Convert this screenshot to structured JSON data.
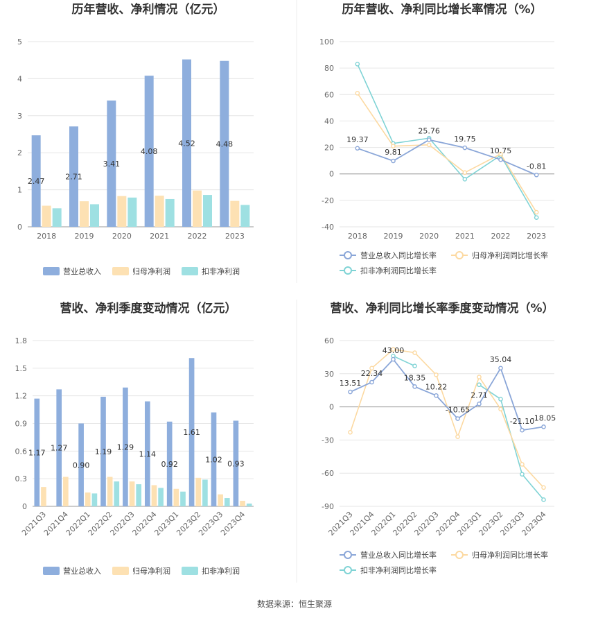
{
  "source_label": "数据来源：恒生聚源",
  "colors": {
    "revenue": "#8eaedd",
    "netprofit": "#fde1b3",
    "deducted": "#9ee0e2",
    "revenue_line": "#8aa6d8",
    "netprofit_line": "#fcd9a1",
    "deducted_line": "#7fd3d5"
  },
  "chart_data": [
    {
      "type": "bar",
      "title": "历年营收、净利情况（亿元）",
      "categories": [
        "2018",
        "2019",
        "2020",
        "2021",
        "2022",
        "2023"
      ],
      "ylim": [
        0,
        5
      ],
      "yticks": [
        0,
        1,
        2,
        3,
        4,
        5
      ],
      "series": [
        {
          "name": "营业总收入",
          "values": [
            2.47,
            2.71,
            3.41,
            4.08,
            4.52,
            4.48
          ],
          "labels": [
            "2.47",
            "2.71",
            "3.41",
            "4.08",
            "4.52",
            "4.48"
          ]
        },
        {
          "name": "归母净利润",
          "values": [
            0.57,
            0.69,
            0.83,
            0.84,
            0.98,
            0.7
          ]
        },
        {
          "name": "扣非净利润",
          "values": [
            0.5,
            0.61,
            0.79,
            0.75,
            0.86,
            0.59
          ]
        }
      ],
      "grid": true,
      "legend": "bottom"
    },
    {
      "type": "line",
      "title": "历年营收、净利同比增长率情况（%）",
      "categories": [
        "2018",
        "2019",
        "2020",
        "2021",
        "2022",
        "2023"
      ],
      "ylim": [
        -40,
        100
      ],
      "yticks": [
        -40,
        -20,
        0,
        20,
        40,
        60,
        80,
        100
      ],
      "series": [
        {
          "name": "营业总收入同比增长率",
          "values": [
            19.37,
            9.81,
            25.76,
            19.75,
            10.75,
            -0.81
          ],
          "labels": [
            "19.37",
            "9.81",
            "25.76",
            "19.75",
            "10.75",
            "-0.81"
          ]
        },
        {
          "name": "归母净利润同比增长率",
          "values": [
            61.0,
            21.0,
            22.0,
            1.0,
            15.0,
            -29.0
          ]
        },
        {
          "name": "扣非净利润同比增长率",
          "values": [
            83.0,
            23.0,
            27.0,
            -4.0,
            14.0,
            -33.0
          ]
        }
      ],
      "grid": true,
      "legend": "bottom"
    },
    {
      "type": "bar",
      "title": "营收、净利季度变动情况（亿元）",
      "categories": [
        "2021Q3",
        "2021Q4",
        "2022Q1",
        "2022Q2",
        "2022Q3",
        "2022Q4",
        "2023Q1",
        "2023Q2",
        "2023Q3",
        "2023Q4"
      ],
      "ylim": [
        0,
        1.8
      ],
      "yticks": [
        0,
        0.3,
        0.6,
        0.9,
        1.2,
        1.5,
        1.8
      ],
      "ytick_labels": [
        "0",
        "0.3",
        "0.6",
        "0.9",
        "1.2",
        "1.5",
        "1.8"
      ],
      "series": [
        {
          "name": "营业总收入",
          "values": [
            1.17,
            1.27,
            0.9,
            1.19,
            1.29,
            1.14,
            0.92,
            1.61,
            1.02,
            0.93
          ],
          "labels": [
            "1.17",
            "1.27",
            "0.90",
            "1.19",
            "1.29",
            "1.14",
            "0.92",
            "1.61",
            "1.02",
            "0.93"
          ]
        },
        {
          "name": "归母净利润",
          "values": [
            0.21,
            0.32,
            0.15,
            0.32,
            0.27,
            0.23,
            0.19,
            0.31,
            0.13,
            0.06
          ]
        },
        {
          "name": "扣非净利润",
          "values": [
            0.0,
            0.0,
            0.14,
            0.27,
            0.24,
            0.2,
            0.16,
            0.29,
            0.09,
            0.03
          ]
        }
      ],
      "grid": true,
      "legend": "bottom"
    },
    {
      "type": "line",
      "title": "营收、净利同比增长率季度变动情况（%）",
      "categories": [
        "2021Q3",
        "2021Q4",
        "2022Q1",
        "2022Q2",
        "2022Q3",
        "2022Q4",
        "2023Q1",
        "2023Q2",
        "2023Q3",
        "2023Q4"
      ],
      "ylim": [
        -90,
        60
      ],
      "yticks": [
        -90,
        -60,
        -30,
        0,
        30,
        60
      ],
      "series": [
        {
          "name": "营业总收入同比增长率",
          "values": [
            13.51,
            22.34,
            43.0,
            18.35,
            10.22,
            -10.65,
            2.71,
            35.04,
            -21.1,
            -18.05
          ],
          "labels": [
            "13.51",
            "22.34",
            "43.00",
            "18.35",
            "10.22",
            "-10.65",
            "2.71",
            "35.04",
            "-21.10",
            "-18.05"
          ]
        },
        {
          "name": "归母净利润同比增长率",
          "values": [
            -23.0,
            35.0,
            52.0,
            49.0,
            29.0,
            -27.0,
            27.0,
            -2.0,
            -52.0,
            -73.0
          ]
        },
        {
          "name": "扣非净利润同比增长率",
          "values": [
            null,
            null,
            46.0,
            37.0,
            null,
            null,
            20.0,
            7.0,
            -61.0,
            -84.0
          ]
        }
      ],
      "grid": true,
      "legend": "bottom"
    }
  ]
}
